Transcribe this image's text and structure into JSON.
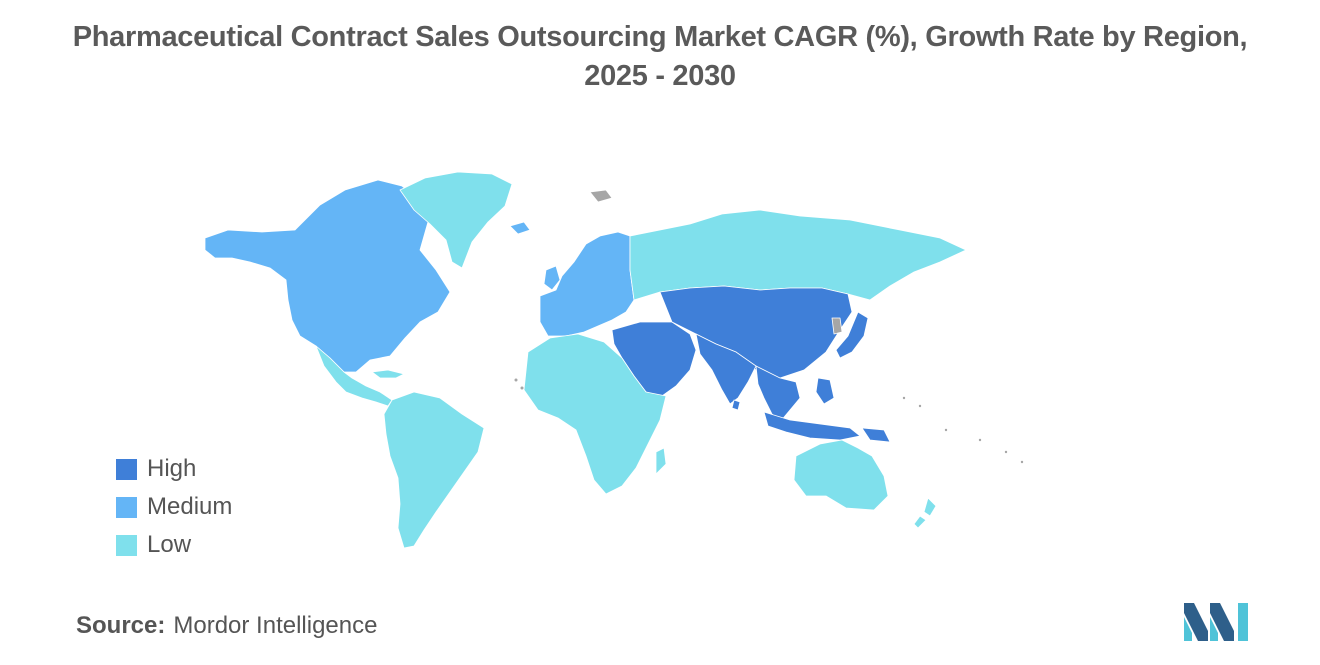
{
  "title_line1": "Pharmaceutical Contract Sales Outsourcing Market CAGR (%), Growth Rate by Region,",
  "title_line2": "2025 - 2030",
  "legend": [
    {
      "label": "High",
      "color": "#3f7fd8"
    },
    {
      "label": "Medium",
      "color": "#64b5f6"
    },
    {
      "label": "Low",
      "color": "#7fe0ec"
    }
  ],
  "no_data_color": "#a6a6a6",
  "regions": [
    {
      "name": "North America",
      "level": "Medium"
    },
    {
      "name": "Greenland",
      "level": "Low"
    },
    {
      "name": "Central America",
      "level": "Low"
    },
    {
      "name": "South America",
      "level": "Low"
    },
    {
      "name": "Europe",
      "level": "Medium"
    },
    {
      "name": "Russia",
      "level": "Low"
    },
    {
      "name": "Middle East",
      "level": "High"
    },
    {
      "name": "Central Asia",
      "level": "High"
    },
    {
      "name": "South Asia",
      "level": "High"
    },
    {
      "name": "East Asia",
      "level": "High"
    },
    {
      "name": "Japan",
      "level": "High"
    },
    {
      "name": "Southeast Asia",
      "level": "High"
    },
    {
      "name": "Africa",
      "level": "Low"
    },
    {
      "name": "Australia",
      "level": "Low"
    },
    {
      "name": "New Zealand",
      "level": "Low"
    }
  ],
  "source_label": "Source:",
  "source_value": "Mordor Intelligence",
  "logo_icon": "mordor-intelligence-logo"
}
